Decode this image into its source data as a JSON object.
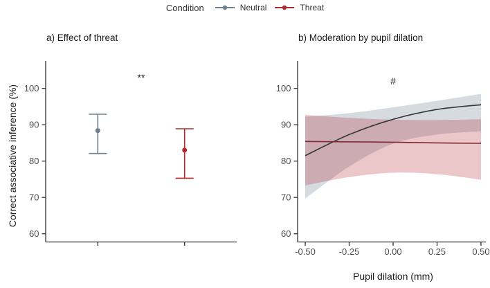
{
  "figure": {
    "legend": {
      "title": "Condition",
      "items": [
        {
          "label": "Neutral",
          "color": "#6d7e8e"
        },
        {
          "label": "Threat",
          "color": "#b2282d"
        }
      ]
    },
    "panel_a_title": "a) Effect of threat",
    "panel_b_title": "b) Moderation by pupil dilation",
    "y_axis_label": "Correct associative inference (%)",
    "x_axis_label_b": "Pupil dilation (mm)"
  },
  "chart_data": [
    {
      "panel": "a",
      "type": "pointrange",
      "title": "a) Effect of threat",
      "ylabel": "Correct associative inference (%)",
      "xlabel": "",
      "categories": [
        "Neutral",
        "Threat"
      ],
      "xtick_labels_shown": false,
      "yticks": [
        60,
        70,
        80,
        90,
        100
      ],
      "ylim": [
        57.8,
        107.6
      ],
      "grid": false,
      "annotation": {
        "text": "**",
        "y_value": 103
      },
      "series": [
        {
          "name": "Neutral",
          "color": "#6d7e8e",
          "mean": 88.4,
          "ci_low": 82.1,
          "ci_high": 92.9
        },
        {
          "name": "Threat",
          "color": "#b2282d",
          "mean": 83.0,
          "ci_low": 75.3,
          "ci_high": 88.9
        }
      ]
    },
    {
      "panel": "b",
      "type": "line",
      "title": "b) Moderation by pupil dilation",
      "xlabel": "Pupil dilation (mm)",
      "ylabel": "Correct associative inference (%)",
      "x": [
        -0.5,
        -0.25,
        0.0,
        0.25,
        0.5
      ],
      "xtick_labels": [
        "-0.50",
        "-0.25",
        "0.00",
        "0.25",
        "0.50"
      ],
      "xlim": [
        -0.5,
        0.5
      ],
      "yticks": [
        60,
        70,
        80,
        90,
        100
      ],
      "ylim": [
        57.8,
        107.6
      ],
      "grid": false,
      "legend_position": "top",
      "annotation": {
        "text": "#",
        "x": 0.0,
        "y_value": 102
      },
      "series": [
        {
          "name": "Neutral",
          "line_color": "#34383c",
          "ribbon_color": "#6d7e8e",
          "ribbon_opacity": 0.28,
          "values": [
            81.5,
            87.3,
            91.5,
            94.2,
            95.5
          ],
          "ribbon_low": [
            69.7,
            78.5,
            84.8,
            87.3,
            88.2
          ],
          "ribbon_high": [
            92.2,
            93.2,
            94.8,
            96.6,
            98.5
          ]
        },
        {
          "name": "Threat",
          "line_color": "#7e2a30",
          "ribbon_color": "#b2282d",
          "ribbon_opacity": 0.26,
          "values": [
            85.4,
            85.3,
            85.2,
            85.0,
            84.9
          ],
          "ribbon_low": [
            73.3,
            75.6,
            76.8,
            76.4,
            74.9
          ],
          "ribbon_high": [
            92.7,
            91.9,
            91.4,
            91.3,
            91.5
          ]
        }
      ]
    }
  ]
}
